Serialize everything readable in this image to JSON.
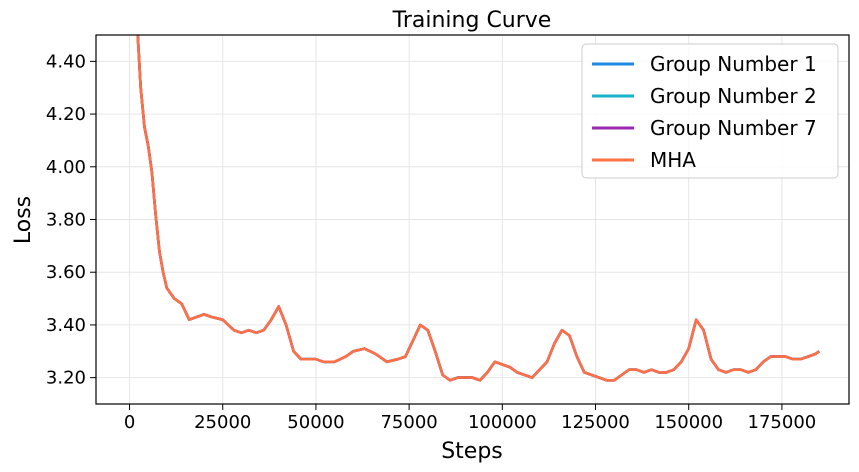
{
  "chart_data": {
    "type": "line",
    "title": "Training Curve",
    "xlabel": "Steps",
    "ylabel": "Loss",
    "xlim": [
      -9000,
      193000
    ],
    "ylim": [
      3.1,
      4.5
    ],
    "x_ticks": [
      0,
      25000,
      50000,
      75000,
      100000,
      125000,
      150000,
      175000
    ],
    "x_tick_labels": [
      "0",
      "25000",
      "50000",
      "75000",
      "100000",
      "125000",
      "150000",
      "175000"
    ],
    "y_ticks": [
      3.2,
      3.4,
      3.6,
      3.8,
      4.0,
      4.2,
      4.4
    ],
    "y_tick_labels": [
      "3.20",
      "3.40",
      "3.60",
      "3.80",
      "4.00",
      "4.20",
      "4.40"
    ],
    "grid": true,
    "legend_position": "top-right",
    "x": [
      2000,
      3000,
      4000,
      5000,
      6000,
      7000,
      8000,
      9000,
      10000,
      12000,
      14000,
      16000,
      18000,
      20000,
      22000,
      25000,
      28000,
      30000,
      32000,
      34000,
      36000,
      38000,
      40000,
      42000,
      44000,
      46000,
      48000,
      50000,
      52000,
      55000,
      58000,
      60000,
      63000,
      66000,
      69000,
      72000,
      74000,
      76000,
      78000,
      80000,
      82000,
      84000,
      86000,
      88000,
      90000,
      92000,
      94000,
      96000,
      98000,
      100000,
      102000,
      104000,
      106000,
      108000,
      110000,
      112000,
      114000,
      116000,
      118000,
      120000,
      122000,
      124000,
      126000,
      128000,
      130000,
      132000,
      134000,
      136000,
      138000,
      140000,
      142000,
      144000,
      146000,
      148000,
      150000,
      152000,
      154000,
      156000,
      158000,
      160000,
      162000,
      164000,
      166000,
      168000,
      170000,
      172000,
      174000,
      176000,
      178000,
      180000,
      182000,
      184000,
      185000
    ],
    "series": [
      {
        "name": "Group Number 1",
        "color": "#1e88e5",
        "values": [
          4.55,
          4.3,
          4.15,
          4.08,
          3.98,
          3.82,
          3.68,
          3.6,
          3.54,
          3.5,
          3.48,
          3.42,
          3.43,
          3.44,
          3.43,
          3.42,
          3.38,
          3.37,
          3.38,
          3.37,
          3.38,
          3.42,
          3.47,
          3.4,
          3.3,
          3.27,
          3.27,
          3.27,
          3.26,
          3.26,
          3.28,
          3.3,
          3.31,
          3.29,
          3.26,
          3.27,
          3.28,
          3.34,
          3.4,
          3.38,
          3.3,
          3.21,
          3.19,
          3.2,
          3.2,
          3.2,
          3.19,
          3.22,
          3.26,
          3.25,
          3.24,
          3.22,
          3.21,
          3.2,
          3.23,
          3.26,
          3.33,
          3.38,
          3.36,
          3.28,
          3.22,
          3.21,
          3.2,
          3.19,
          3.19,
          3.21,
          3.23,
          3.23,
          3.22,
          3.23,
          3.22,
          3.22,
          3.23,
          3.26,
          3.31,
          3.42,
          3.38,
          3.27,
          3.23,
          3.22,
          3.23,
          3.23,
          3.22,
          3.23,
          3.26,
          3.28,
          3.28,
          3.28,
          3.27,
          3.27,
          3.28,
          3.29,
          3.3
        ]
      },
      {
        "name": "Group Number 2",
        "color": "#17b3c6",
        "values": [
          4.55,
          4.3,
          4.15,
          4.08,
          3.98,
          3.82,
          3.68,
          3.6,
          3.54,
          3.5,
          3.48,
          3.42,
          3.43,
          3.44,
          3.43,
          3.42,
          3.38,
          3.37,
          3.38,
          3.37,
          3.38,
          3.42,
          3.47,
          3.4,
          3.3,
          3.27,
          3.27,
          3.27,
          3.26,
          3.26,
          3.28,
          3.3,
          3.31,
          3.29,
          3.26,
          3.27,
          3.28,
          3.34,
          3.4,
          3.38,
          3.3,
          3.21,
          3.19,
          3.2,
          3.2,
          3.2,
          3.19,
          3.22,
          3.26,
          3.25,
          3.24,
          3.22,
          3.21,
          3.2,
          3.23,
          3.26,
          3.33,
          3.38,
          3.36,
          3.28,
          3.22,
          3.21,
          3.2,
          3.19,
          3.19,
          3.21,
          3.23,
          3.23,
          3.22,
          3.23,
          3.22,
          3.22,
          3.23,
          3.26,
          3.31,
          3.42,
          3.38,
          3.27,
          3.23,
          3.22,
          3.23,
          3.23,
          3.22,
          3.23,
          3.26,
          3.28,
          3.28,
          3.28,
          3.27,
          3.27,
          3.28,
          3.29,
          3.3
        ]
      },
      {
        "name": "Group Number 7",
        "color": "#9c27b0",
        "values": [
          4.55,
          4.3,
          4.15,
          4.08,
          3.98,
          3.82,
          3.68,
          3.6,
          3.54,
          3.5,
          3.48,
          3.42,
          3.43,
          3.44,
          3.43,
          3.42,
          3.38,
          3.37,
          3.38,
          3.37,
          3.38,
          3.42,
          3.47,
          3.4,
          3.3,
          3.27,
          3.27,
          3.27,
          3.26,
          3.26,
          3.28,
          3.3,
          3.31,
          3.29,
          3.26,
          3.27,
          3.28,
          3.34,
          3.4,
          3.38,
          3.3,
          3.21,
          3.19,
          3.2,
          3.2,
          3.2,
          3.19,
          3.22,
          3.26,
          3.25,
          3.24,
          3.22,
          3.21,
          3.2,
          3.23,
          3.26,
          3.33,
          3.38,
          3.36,
          3.28,
          3.22,
          3.21,
          3.2,
          3.19,
          3.19,
          3.21,
          3.23,
          3.23,
          3.22,
          3.23,
          3.22,
          3.22,
          3.23,
          3.26,
          3.31,
          3.42,
          3.38,
          3.27,
          3.23,
          3.22,
          3.23,
          3.23,
          3.22,
          3.23,
          3.26,
          3.28,
          3.28,
          3.28,
          3.27,
          3.27,
          3.28,
          3.29,
          3.3
        ]
      },
      {
        "name": "MHA",
        "color": "#ff7043",
        "values": [
          4.55,
          4.3,
          4.15,
          4.08,
          3.98,
          3.82,
          3.68,
          3.6,
          3.54,
          3.5,
          3.48,
          3.42,
          3.43,
          3.44,
          3.43,
          3.42,
          3.38,
          3.37,
          3.38,
          3.37,
          3.38,
          3.42,
          3.47,
          3.4,
          3.3,
          3.27,
          3.27,
          3.27,
          3.26,
          3.26,
          3.28,
          3.3,
          3.31,
          3.29,
          3.26,
          3.27,
          3.28,
          3.34,
          3.4,
          3.38,
          3.3,
          3.21,
          3.19,
          3.2,
          3.2,
          3.2,
          3.19,
          3.22,
          3.26,
          3.25,
          3.24,
          3.22,
          3.21,
          3.2,
          3.23,
          3.26,
          3.33,
          3.38,
          3.36,
          3.28,
          3.22,
          3.21,
          3.2,
          3.19,
          3.19,
          3.21,
          3.23,
          3.23,
          3.22,
          3.23,
          3.22,
          3.22,
          3.23,
          3.26,
          3.31,
          3.42,
          3.38,
          3.27,
          3.23,
          3.22,
          3.23,
          3.23,
          3.22,
          3.23,
          3.26,
          3.28,
          3.28,
          3.28,
          3.27,
          3.27,
          3.28,
          3.29,
          3.3
        ]
      }
    ]
  }
}
